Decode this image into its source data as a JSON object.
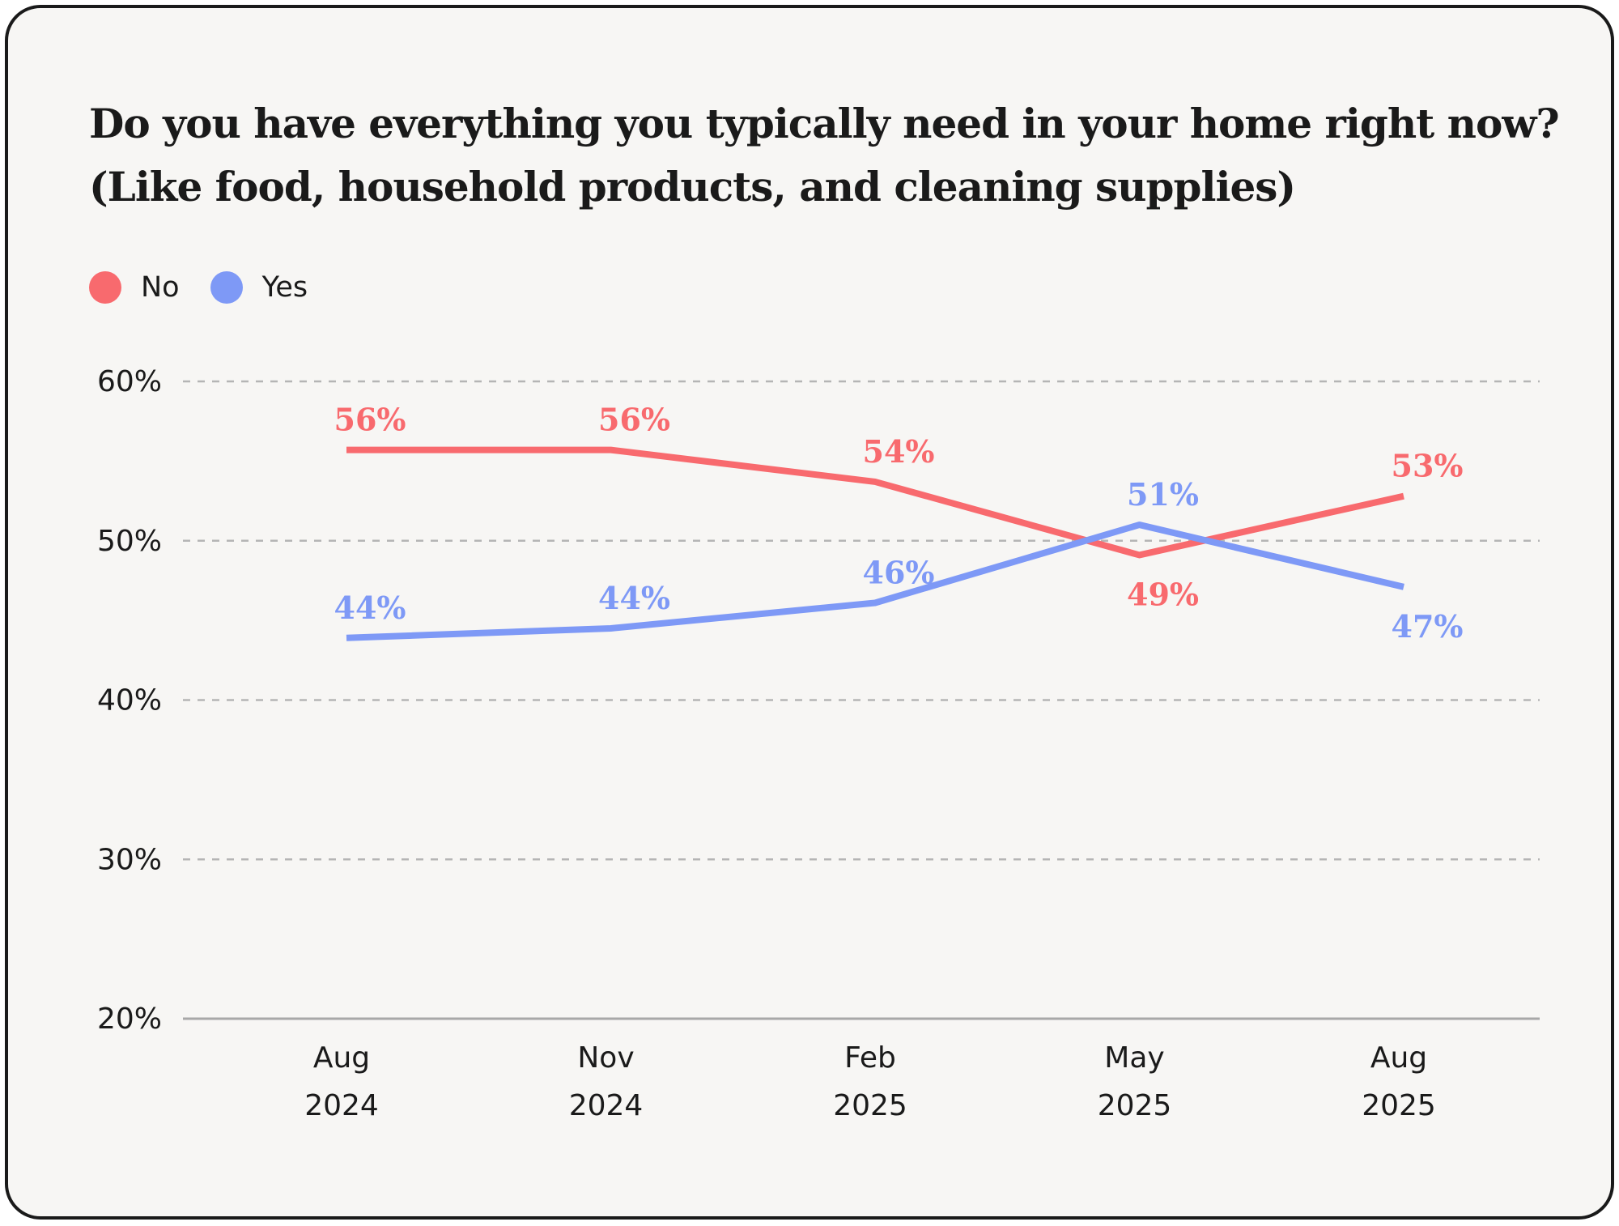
{
  "chart_data": {
    "type": "line",
    "title": "Do you have everything you typically need in your home right now? (Like food, household products, and cleaning supplies)",
    "categories": [
      [
        "Aug",
        "2024"
      ],
      [
        "Nov",
        "2024"
      ],
      [
        "Feb",
        "2025"
      ],
      [
        "May",
        "2025"
      ],
      [
        "Aug",
        "2025"
      ]
    ],
    "series": [
      {
        "name": "No",
        "color": "#f86a6e",
        "values": [
          55.7,
          55.7,
          53.7,
          49.1,
          52.8
        ],
        "labels": [
          "56%",
          "56%",
          "54%",
          "49%",
          "53%"
        ],
        "label_positions": [
          "above",
          "above",
          "above",
          "below",
          "above"
        ]
      },
      {
        "name": "Yes",
        "color": "#7e99f6",
        "values": [
          43.9,
          44.5,
          46.1,
          51.0,
          47.1
        ],
        "labels": [
          "44%",
          "44%",
          "46%",
          "51%",
          "47%"
        ],
        "label_positions": [
          "above",
          "above",
          "above",
          "above",
          "below"
        ]
      }
    ],
    "ylim": [
      20,
      60
    ],
    "yticks": [
      20,
      30,
      40,
      50,
      60
    ],
    "ytick_labels": [
      "20%",
      "30%",
      "40%",
      "50%",
      "60%"
    ],
    "grid": true,
    "legend": "top-left",
    "xlabel": "",
    "ylabel": ""
  }
}
